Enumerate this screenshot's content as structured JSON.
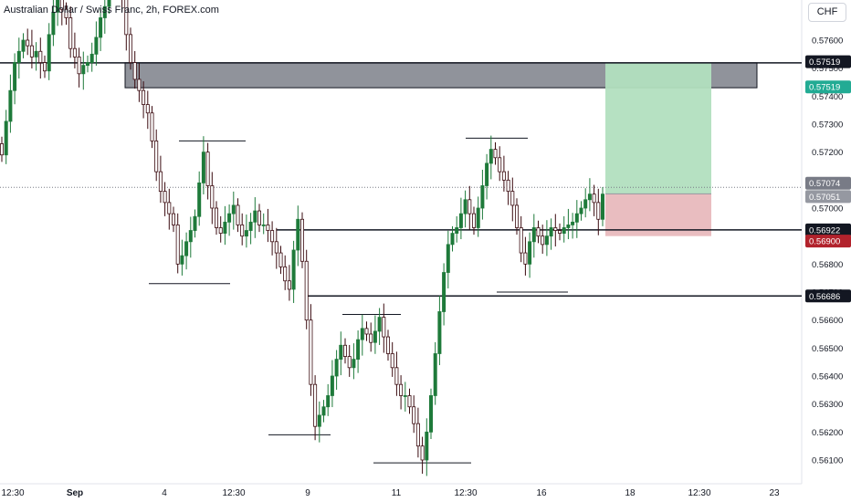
{
  "header": {
    "symbol_title": "Australian Dollar / Swiss Franc, 2h, FOREX.com",
    "currency_button": "CHF"
  },
  "colors": {
    "up": "#089981",
    "down": "#f23645",
    "candle_body": "#1e7a3a",
    "zone_fill": "#6b6f7a",
    "target_fill": "#b2dfbf",
    "stop_fill": "#e8b9bd",
    "target_label": "#22ab94",
    "stop_label": "#b2222c",
    "level_label": "#131722"
  },
  "chart_data": {
    "type": "candlestick",
    "title": "Australian Dollar / Swiss Franc, 2h, FOREX.com",
    "ylim": [
      0.5604,
      0.5766
    ],
    "y_ticks": [
      "0.57600",
      "0.57500",
      "0.57400",
      "0.57300",
      "0.57200",
      "0.57100",
      "0.57000",
      "0.56900",
      "0.56800",
      "0.56700",
      "0.56600",
      "0.56500",
      "0.56400",
      "0.56300",
      "0.56200",
      "0.56100"
    ],
    "x_ticks": [
      "12:30",
      "Sep",
      "4",
      "12:30",
      "9",
      "11",
      "12:30",
      "16",
      "18",
      "12:30",
      "23"
    ],
    "price_labels": {
      "zone_top": "0.57519",
      "take_profit": "0.57519",
      "current": "0.57074",
      "entry": "0.57051",
      "level_1": "0.56922",
      "stop_loss": "0.56900",
      "level_2": "0.56686"
    },
    "levels": [
      0.57519,
      0.56922,
      0.56686
    ],
    "zone": {
      "from": 0.5743,
      "to": 0.57519
    },
    "position": {
      "entry": 0.57051,
      "target": 0.57519,
      "stop": 0.569
    },
    "current_price": 0.57074,
    "closes": [
      0.5719,
      0.5731,
      0.5742,
      0.5752,
      0.5756,
      0.576,
      0.5758,
      0.5754,
      0.5756,
      0.5752,
      0.5749,
      0.5762,
      0.577,
      0.5776,
      0.5771,
      0.5768,
      0.5757,
      0.5754,
      0.5748,
      0.5751,
      0.5752,
      0.5755,
      0.5761,
      0.5768,
      0.5772,
      0.5778,
      0.5783,
      0.5786,
      0.5775,
      0.5762,
      0.5752,
      0.5746,
      0.5742,
      0.5737,
      0.5734,
      0.5724,
      0.5713,
      0.5706,
      0.5702,
      0.5698,
      0.5694,
      0.568,
      0.5683,
      0.5688,
      0.5692,
      0.5697,
      0.5709,
      0.572,
      0.5708,
      0.57,
      0.5693,
      0.5691,
      0.5695,
      0.5698,
      0.5701,
      0.5694,
      0.569,
      0.5692,
      0.5695,
      0.5699,
      0.5694,
      0.5694,
      0.5692,
      0.5688,
      0.5684,
      0.5679,
      0.5674,
      0.5671,
      0.5685,
      0.5696,
      0.5681,
      0.566,
      0.5637,
      0.5622,
      0.5626,
      0.5629,
      0.5633,
      0.564,
      0.5646,
      0.5651,
      0.5647,
      0.5643,
      0.5646,
      0.5653,
      0.5657,
      0.5655,
      0.5652,
      0.5656,
      0.5661,
      0.5654,
      0.5648,
      0.5643,
      0.5637,
      0.5633,
      0.5633,
      0.5629,
      0.5623,
      0.5615,
      0.561,
      0.562,
      0.5633,
      0.5648,
      0.5663,
      0.5677,
      0.5687,
      0.5691,
      0.5693,
      0.5698,
      0.5703,
      0.5698,
      0.5693,
      0.57,
      0.5708,
      0.5716,
      0.5721,
      0.5718,
      0.5713,
      0.571,
      0.5706,
      0.5701,
      0.5693,
      0.5684,
      0.568,
      0.5688,
      0.5693,
      0.569,
      0.5687,
      0.569,
      0.5693,
      0.5692,
      0.5691,
      0.5693,
      0.5694,
      0.5695,
      0.5698,
      0.57,
      0.5703,
      0.5705,
      0.5702,
      0.5696,
      0.5705
    ]
  }
}
